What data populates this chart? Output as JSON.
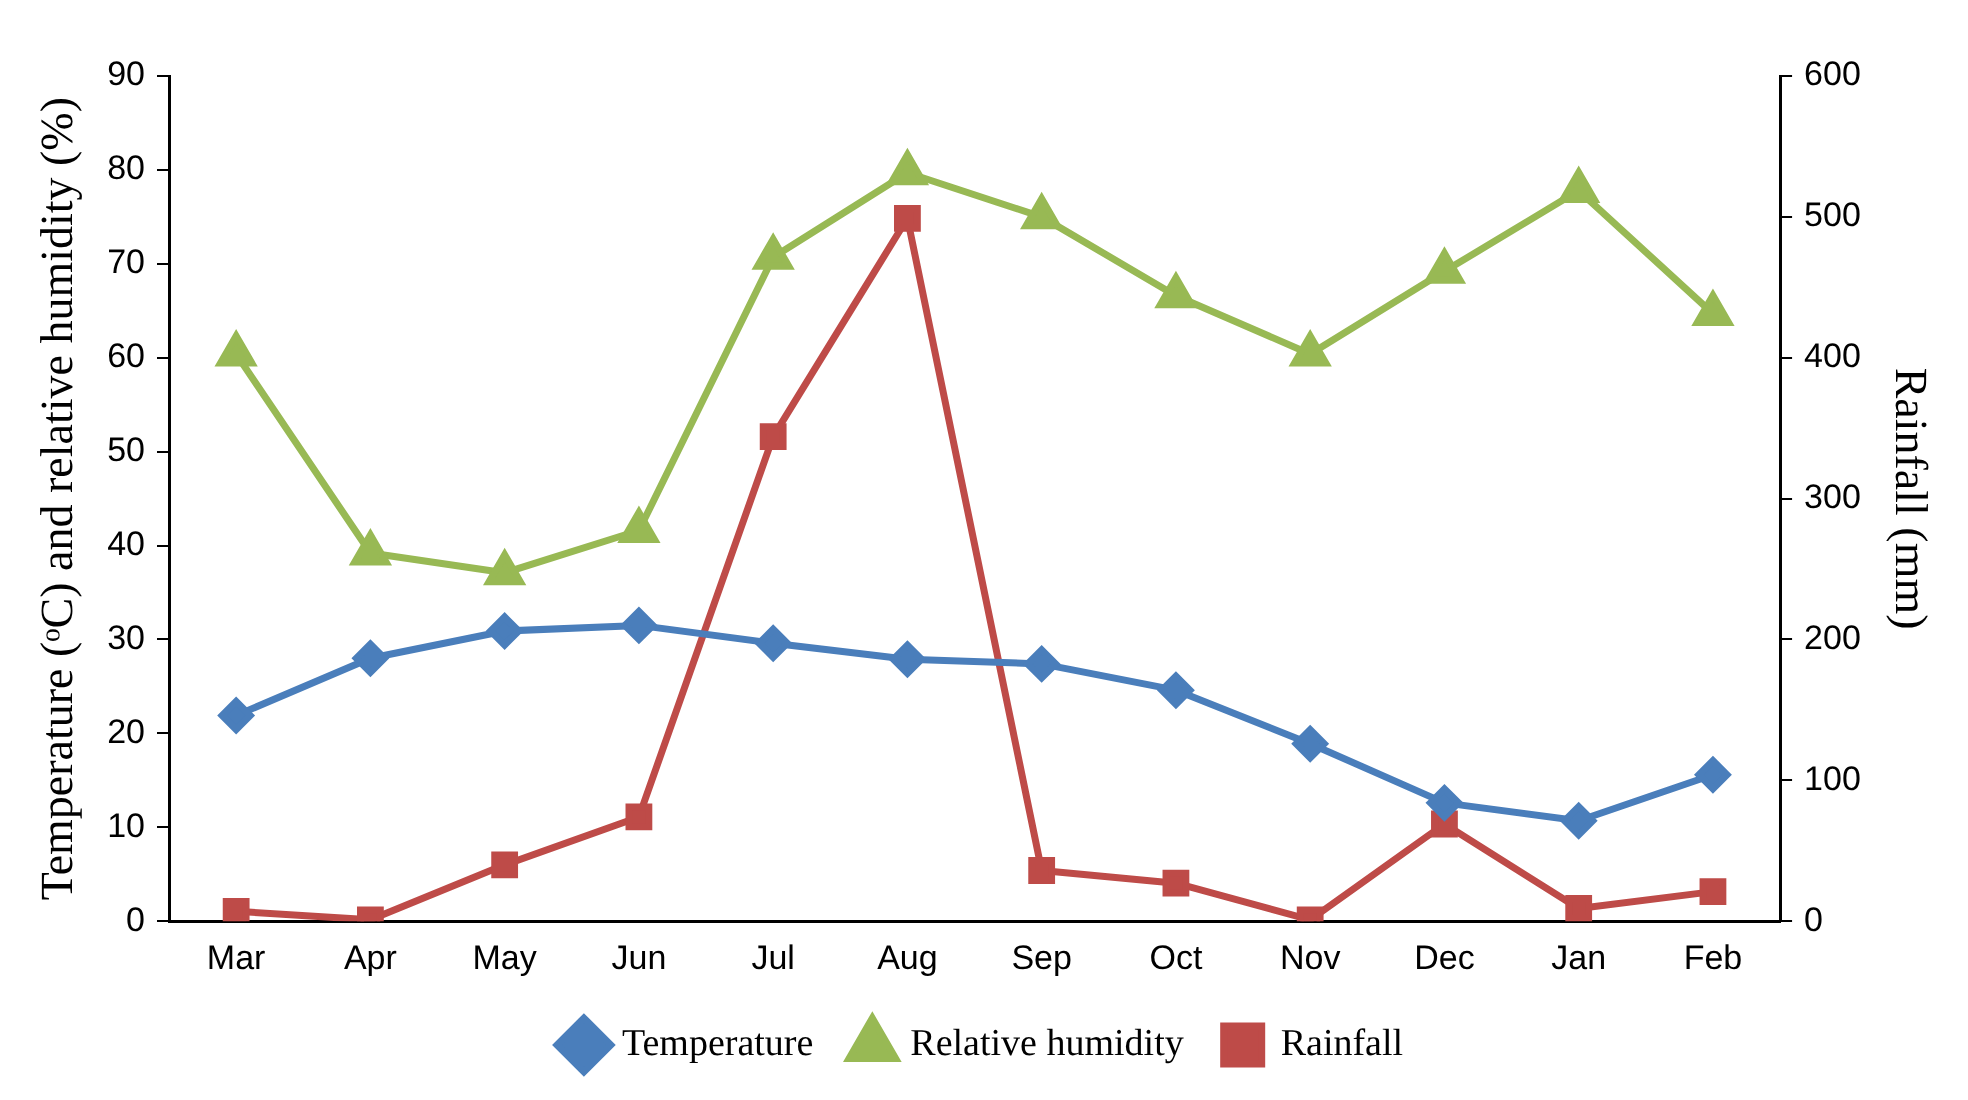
{
  "chart_data": {
    "type": "line",
    "categories": [
      "Mar",
      "Apr",
      "May",
      "Jun",
      "Jul",
      "Aug",
      "Sep",
      "Oct",
      "Nov",
      "Dec",
      "Jan",
      "Feb"
    ],
    "ylabel": "Temperature (ᵒC) and relative humidity (%)",
    "y2label": "Rainfall (mm)",
    "ylim": [
      0,
      90
    ],
    "yticks": [
      0,
      10,
      20,
      30,
      40,
      50,
      60,
      70,
      80,
      90
    ],
    "y2lim": [
      0,
      600
    ],
    "y2ticks": [
      0,
      100,
      200,
      300,
      400,
      500,
      600
    ],
    "grid": false,
    "legend": "bottom",
    "line_style": "solid",
    "series": [
      {
        "name": "Temperature",
        "color": "#4a7ebb",
        "marker": "diamond",
        "values": [
          21.9,
          28,
          30.9,
          31.5,
          29.6,
          27.9,
          27.4,
          24.6,
          18.9,
          12.6,
          10.7,
          15.6
        ]
      },
      {
        "name": "Relative humidity",
        "color": "#98b954",
        "marker": "triangle",
        "values": [
          60.4,
          39.2,
          37.1,
          41.6,
          70.7,
          79.7,
          75,
          66.6,
          60.4,
          69.2,
          77.8,
          64.7
        ]
      },
      {
        "name": "Rainfall",
        "color": "#be4b48",
        "marker": "square",
        "axis": "y2",
        "values": [
          7,
          1,
          40,
          74,
          344,
          499,
          36,
          27,
          1,
          69,
          9,
          21
        ]
      }
    ]
  }
}
